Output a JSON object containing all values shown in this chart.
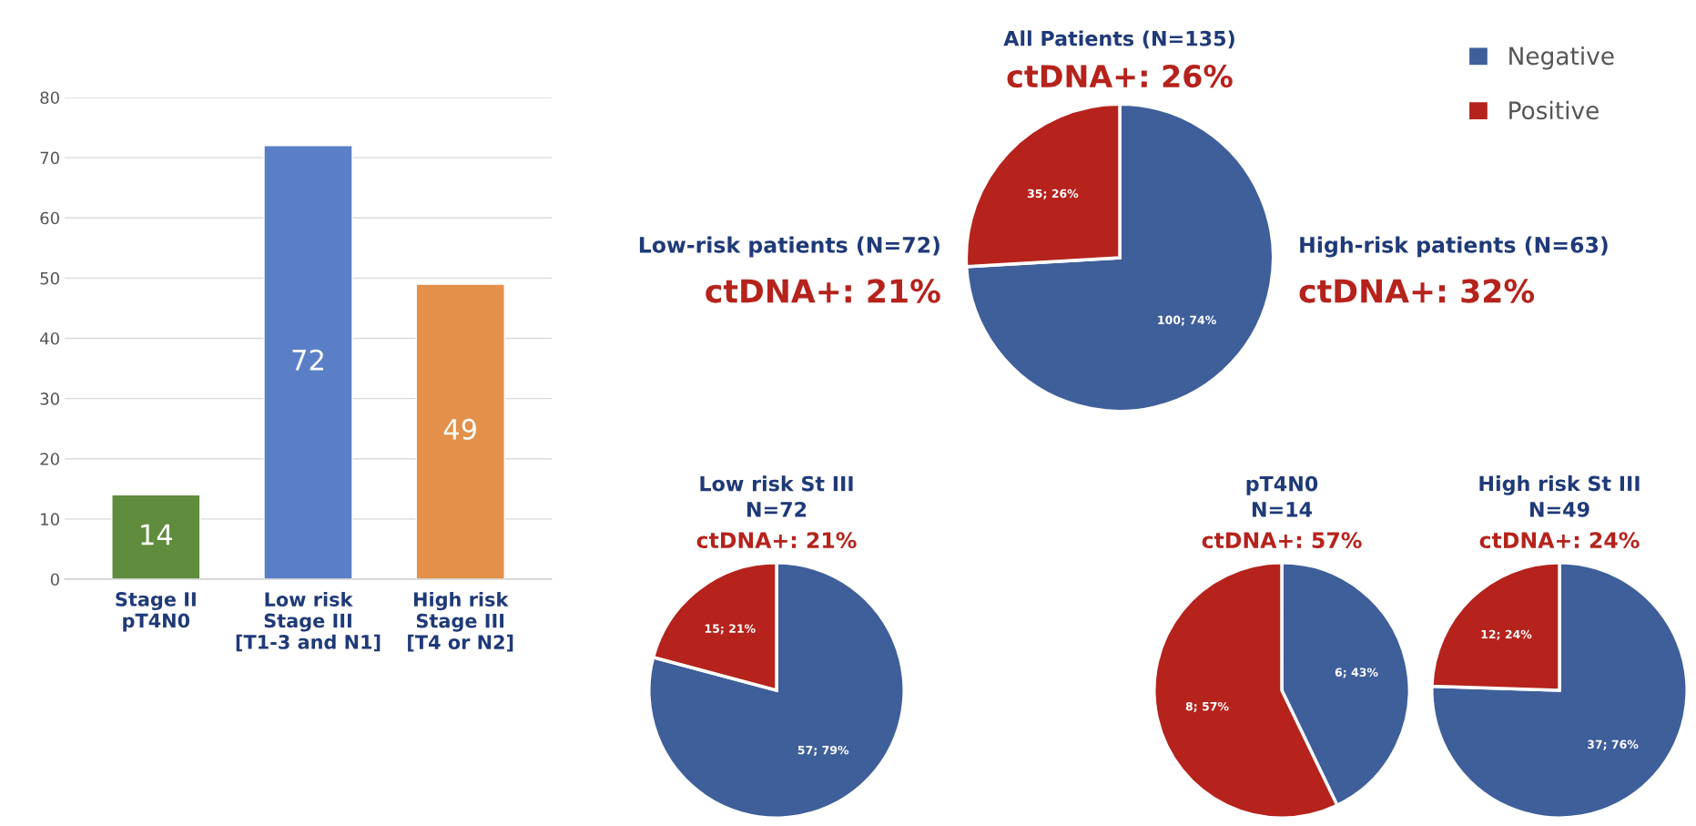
{
  "chart_data": [
    {
      "type": "bar",
      "categories": [
        "Stage II\npT4N0",
        "Low risk\nStage III\n[T1-3 and N1]",
        "High risk\nStage III\n[T4 or N2]"
      ],
      "values": [
        14,
        72,
        49
      ],
      "colors": [
        "#5f8c3d",
        "#5a7fc6",
        "#e2904a"
      ],
      "ylim": [
        0,
        80
      ],
      "yticks": [
        0,
        10,
        20,
        30,
        40,
        50,
        60,
        70,
        80
      ],
      "grid": "y",
      "data_labels": true
    },
    {
      "type": "pie",
      "title": "All Patients (N=135)",
      "subtitle": "ctDNA+: 26%",
      "categories": [
        "Negative",
        "Positive"
      ],
      "values": [
        100,
        35
      ],
      "colors": [
        "#3f5f9b",
        "#b5231c"
      ],
      "value_labels": [
        "100; 74%",
        "35; 26%"
      ],
      "legend": "top right",
      "annotations": [
        "Low-risk patients (N=72)",
        "ctDNA+: 21%",
        "High-risk patients (N=63)",
        "ctDNA+: 32%"
      ]
    },
    {
      "type": "pie",
      "title": "Low risk St III\nN=72",
      "subtitle": "ctDNA+: 21%",
      "categories": [
        null,
        null
      ],
      "values": [
        57,
        15
      ],
      "colors": [
        "#3f5f9b",
        "#b5231c"
      ],
      "value_labels": [
        "57; 79%",
        "15; 21%"
      ]
    },
    {
      "type": "pie",
      "title": "pT4N0\nN=14",
      "subtitle": "ctDNA+: 57%",
      "categories": [
        null,
        null
      ],
      "values": [
        6,
        8
      ],
      "colors": [
        "#3f5f9b",
        "#b5231c"
      ],
      "value_labels": [
        "6; 43%",
        "8; 57%"
      ]
    },
    {
      "type": "pie",
      "title": "High risk St III\nN=49",
      "subtitle": "ctDNA+: 24%",
      "categories": [
        null,
        null
      ],
      "values": [
        37,
        12
      ],
      "colors": [
        "#3f5f9b",
        "#b5231c"
      ],
      "value_labels": [
        "37; 76%",
        "12; 24%"
      ]
    }
  ]
}
